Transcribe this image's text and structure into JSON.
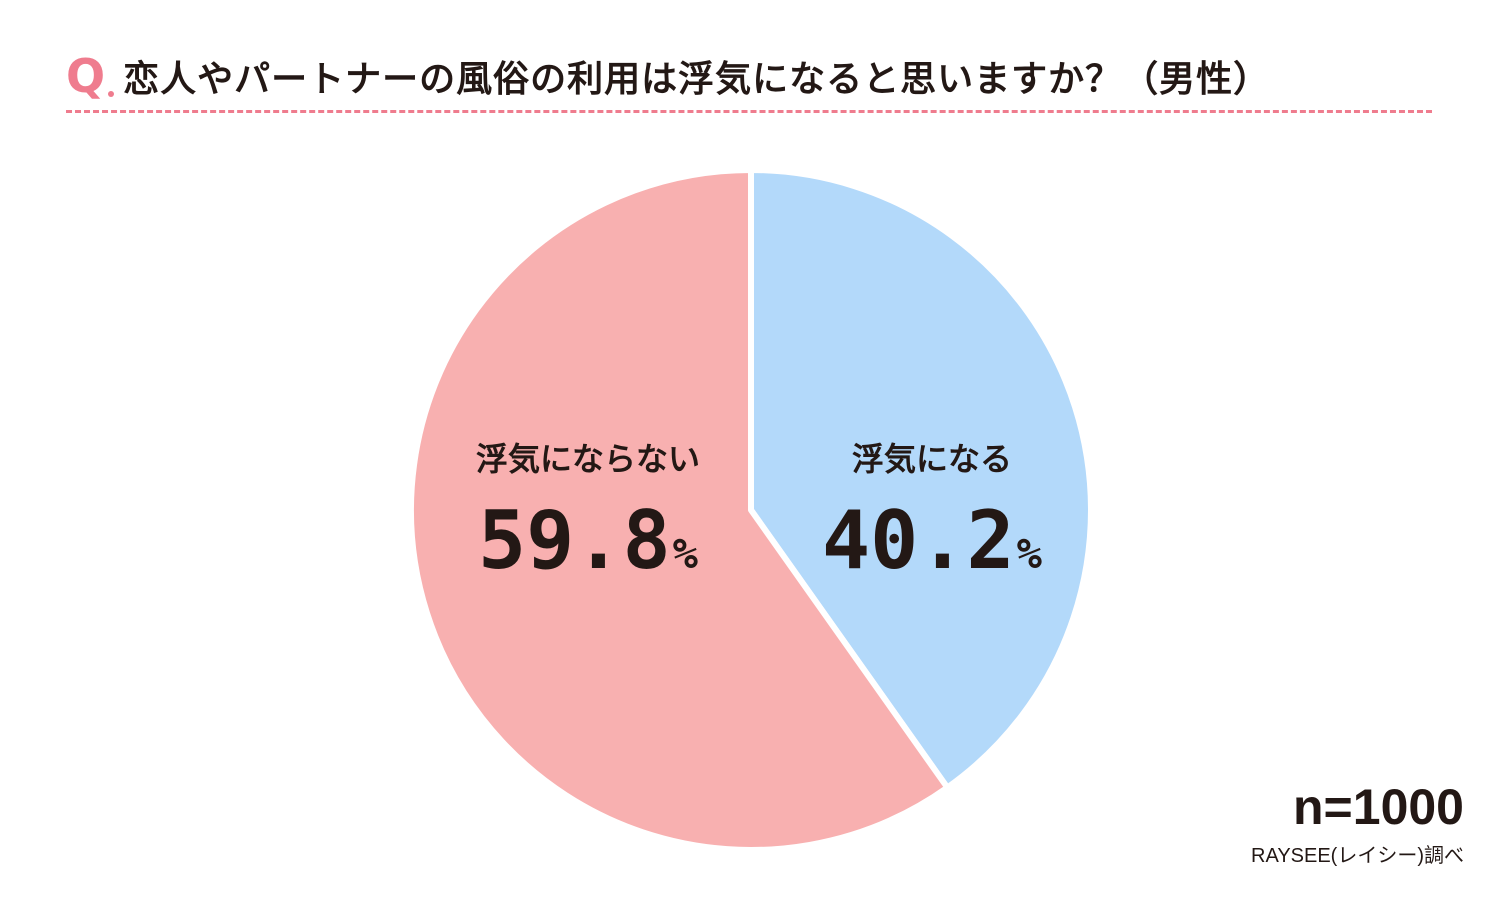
{
  "question_mark": "Q",
  "colors": {
    "accent": "#ef7c8e",
    "slice_yes": "#b3d9fa",
    "slice_no": "#f8b0b0",
    "text": "#231815"
  },
  "chart_data": {
    "type": "pie",
    "title": "恋人やパートナーの風俗の利用は浮気になると思いますか？（男性）",
    "unit": "%",
    "slices": [
      {
        "label": "浮気になる",
        "value": 40.2,
        "value_text": "40.2"
      },
      {
        "label": "浮気にならない",
        "value": 59.8,
        "value_text": "59.8"
      }
    ],
    "start": "12 o'clock",
    "direction": "clockwise",
    "sample_size": "n=1000",
    "source": "RAYSEE(レイシー)調べ"
  }
}
